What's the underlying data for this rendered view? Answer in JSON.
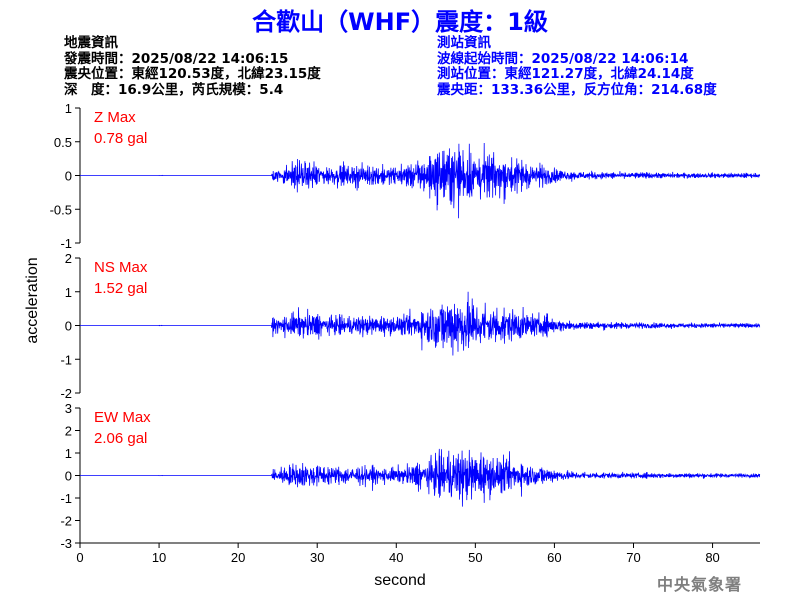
{
  "header": {
    "title": "合歡山（WHF）震度：1級",
    "title_color": "#0000ff"
  },
  "event_info": {
    "heading": "地震資訊",
    "origin_time": "發震時間：2025/08/22 14:06:15",
    "epicenter": "震央位置：東經120.53度，北緯23.15度",
    "depth_magnitude": "深　度：16.9公里，芮氏規模：5.4"
  },
  "station_info": {
    "heading": "測站資訊",
    "wave_start": "波線起始時間：2025/08/22 14:06:14",
    "location": "測站位置：東經121.27度，北緯24.14度",
    "distance": "震央距：133.36公里，反方位角：214.68度",
    "color": "#0000ff"
  },
  "watermark": {
    "text": "中央氣象署",
    "color": "#7f7f7f"
  },
  "chart_data": {
    "type": "line",
    "xlabel": "second",
    "ylabel": "acceleration",
    "xlim": [
      0,
      86
    ],
    "x_ticks": [
      0,
      10,
      20,
      30,
      40,
      50,
      60,
      70,
      80
    ],
    "line_color": "#0000ff",
    "max_label_color": "#ff0000",
    "grid": false,
    "panels": [
      {
        "name": "Z",
        "max_label": "Z Max",
        "max_value": "0.78 gal",
        "peak": 0.78,
        "ylim": [
          -1,
          1
        ],
        "y_ticks": [
          -1,
          -0.5,
          0,
          0.5,
          1
        ],
        "y_tick_labels": [
          "-1",
          "-0.5",
          "0",
          "0.5",
          "1"
        ]
      },
      {
        "name": "NS",
        "max_label": "NS Max",
        "max_value": "1.52 gal",
        "peak": 1.52,
        "ylim": [
          -2,
          2
        ],
        "y_ticks": [
          -2,
          -1,
          0,
          1,
          2
        ],
        "y_tick_labels": [
          "-2",
          "-1",
          "0",
          "1",
          "2"
        ]
      },
      {
        "name": "EW",
        "max_label": "EW Max",
        "max_value": "2.06 gal",
        "peak": 2.06,
        "ylim": [
          -3,
          3
        ],
        "y_ticks": [
          -3,
          -2,
          -1,
          0,
          1,
          2,
          3
        ],
        "y_tick_labels": [
          "-3",
          "-2",
          "-1",
          "0",
          "1",
          "2",
          "3"
        ]
      }
    ]
  }
}
